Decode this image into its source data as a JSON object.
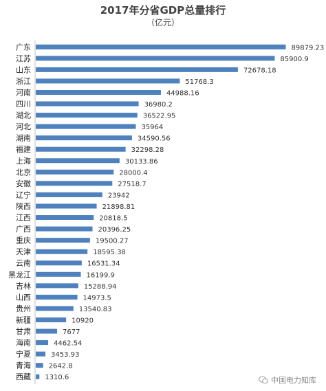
{
  "chart_data": {
    "type": "bar",
    "orientation": "horizontal",
    "title": "2017年分省GDP总量排行",
    "subtitle": "（亿元）",
    "categories": [
      "广东",
      "江苏",
      "山东",
      "浙江",
      "河南",
      "四川",
      "湖北",
      "河北",
      "湖南",
      "福建",
      "上海",
      "北京",
      "安徽",
      "辽宁",
      "陕西",
      "江西",
      "广西",
      "重庆",
      "天津",
      "云南",
      "黑龙江",
      "吉林",
      "山西",
      "贵州",
      "新疆",
      "甘肃",
      "海南",
      "宁夏",
      "青海",
      "西藏"
    ],
    "values": [
      89879.23,
      85900.9,
      72678.18,
      51768.3,
      44988.16,
      36980.2,
      36522.95,
      35964,
      34590.56,
      32298.28,
      30133.86,
      28000.4,
      27518.7,
      23942,
      21898.81,
      20818.5,
      20396.25,
      19500.27,
      18595.38,
      16531.34,
      16199.9,
      15288.94,
      14973.5,
      13540.83,
      10920,
      7677,
      4462.54,
      3453.93,
      2642.8,
      1310.6
    ],
    "value_labels": [
      "89879.23",
      "85900.9",
      "72678.18",
      "51768.3",
      "44988.16",
      "36980.2",
      "36522.95",
      "35964",
      "34590.56",
      "32298.28",
      "30133.86",
      "28000.4",
      "27518.7",
      "23942",
      "21898.81",
      "20818.5",
      "20396.25",
      "19500.27",
      "18595.38",
      "16531.34",
      "16199.9",
      "15288.94",
      "14973.5",
      "13540.83",
      "10920",
      "7677",
      "4462.54",
      "3453.93",
      "2642.8",
      "1310.6"
    ],
    "xlim": [
      0,
      90000
    ],
    "bar_color": "#4f81bd",
    "grid": false,
    "legend": "none"
  },
  "watermark": {
    "text": "中国电力知库",
    "icon": "wechat-icon"
  }
}
